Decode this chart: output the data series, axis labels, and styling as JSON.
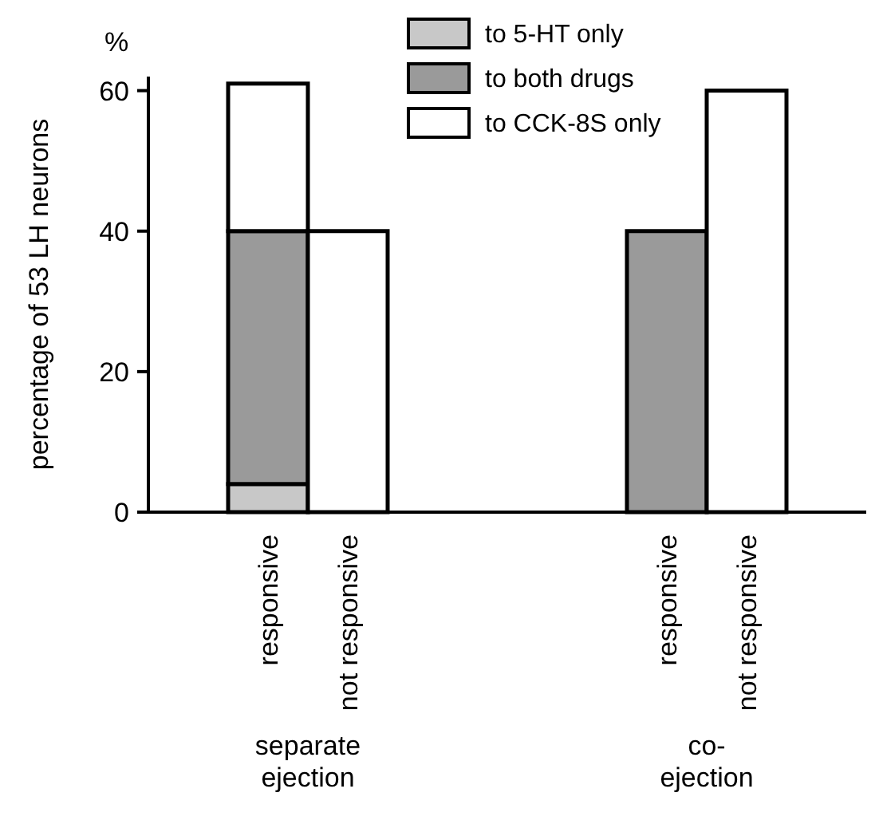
{
  "chart_data": {
    "type": "bar",
    "stacked": true,
    "ylabel": "percentage of 53 LH neurons",
    "categories": [
      null,
      "responsive",
      "not responsive",
      null,
      null,
      null,
      "responsive",
      "not responsive",
      null
    ],
    "series": [
      {
        "name": "to 5-HT only",
        "color": "#c8c8c8",
        "values": [
          null,
          4,
          null,
          null,
          null,
          null,
          null,
          null,
          null
        ]
      },
      {
        "name": "to both drugs",
        "color": "#9a9a9a",
        "values": [
          null,
          36,
          null,
          null,
          null,
          null,
          40,
          null,
          null
        ]
      },
      {
        "name": "to CCK-8S only",
        "color": "#ffffff",
        "values": [
          null,
          21,
          null,
          null,
          null,
          null,
          null,
          null,
          null
        ]
      },
      {
        "color": "#ffffff",
        "values": [
          null,
          null,
          40,
          null,
          null,
          null,
          null,
          60,
          null
        ]
      }
    ],
    "ylim": [
      0,
      62
    ],
    "yticks": [
      0,
      20,
      40,
      60
    ],
    "annotations": [
      "%",
      "separate ejection",
      "co-ejection"
    ],
    "legend": "top"
  }
}
